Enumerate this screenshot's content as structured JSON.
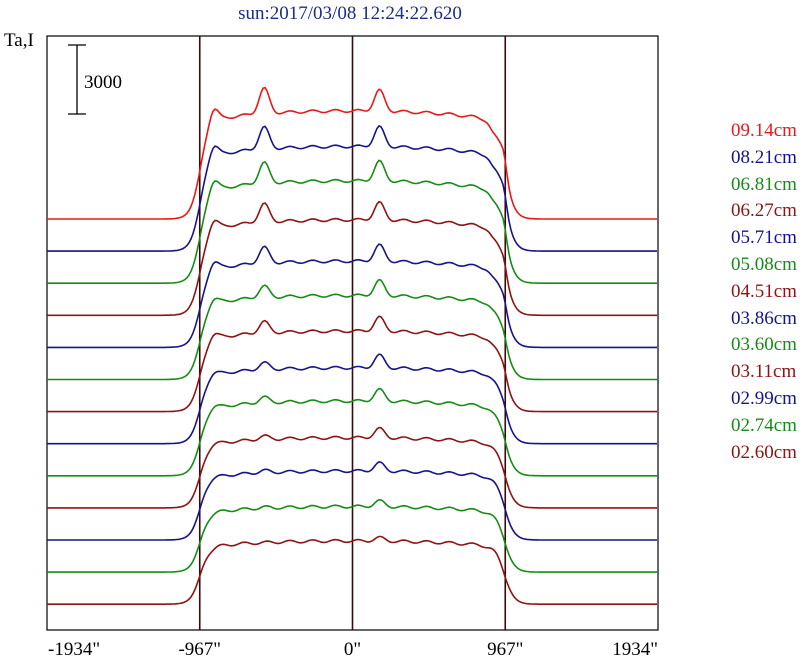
{
  "chart_data": {
    "type": "line",
    "title": "sun:2017/03/08 12:24:22.620",
    "ylabel": "Ta,I",
    "scale_bar": {
      "label": "3000",
      "value": 3000
    },
    "x_ticks": [
      "-1934\"",
      "-967\"",
      "0\"",
      "967\"",
      "1934\""
    ],
    "xlim": [
      -1934,
      1934
    ],
    "limb_markers": [
      -967,
      0,
      967
    ],
    "series": [
      {
        "name": "09.14cm",
        "color": "#e8191b",
        "amplitude": 4700,
        "limb_peak": 1100,
        "center_peak": 900
      },
      {
        "name": "08.21cm",
        "color": "#14148c",
        "amplitude": 4550,
        "limb_peak": 950,
        "center_peak": 850
      },
      {
        "name": "06.81cm",
        "color": "#168c16",
        "amplitude": 4450,
        "limb_peak": 900,
        "center_peak": 850
      },
      {
        "name": "06.27cm",
        "color": "#8c1414",
        "amplitude": 4150,
        "limb_peak": 800,
        "center_peak": 750
      },
      {
        "name": "05.71cm",
        "color": "#14148c",
        "amplitude": 3750,
        "limb_peak": 700,
        "center_peak": 700
      },
      {
        "name": "05.08cm",
        "color": "#168c16",
        "amplitude": 3650,
        "limb_peak": 500,
        "center_peak": 650
      },
      {
        "name": "04.51cm",
        "color": "#8c1414",
        "amplitude": 3500,
        "limb_peak": 500,
        "center_peak": 600
      },
      {
        "name": "03.86cm",
        "color": "#14148c",
        "amplitude": 3300,
        "limb_peak": 300,
        "center_peak": 550
      },
      {
        "name": "03.60cm",
        "color": "#168c16",
        "amplitude": 3250,
        "limb_peak": 250,
        "center_peak": 500
      },
      {
        "name": "03.11cm",
        "color": "#8c1414",
        "amplitude": 3050,
        "limb_peak": 150,
        "center_peak": 400
      },
      {
        "name": "02.99cm",
        "color": "#14148c",
        "amplitude": 3000,
        "limb_peak": 100,
        "center_peak": 350
      },
      {
        "name": "02.74cm",
        "color": "#168c16",
        "amplitude": 2850,
        "limb_peak": 50,
        "center_peak": 250
      },
      {
        "name": "02.60cm",
        "color": "#8c1414",
        "amplitude": 2750,
        "limb_peak": 0,
        "center_peak": 150
      }
    ]
  }
}
